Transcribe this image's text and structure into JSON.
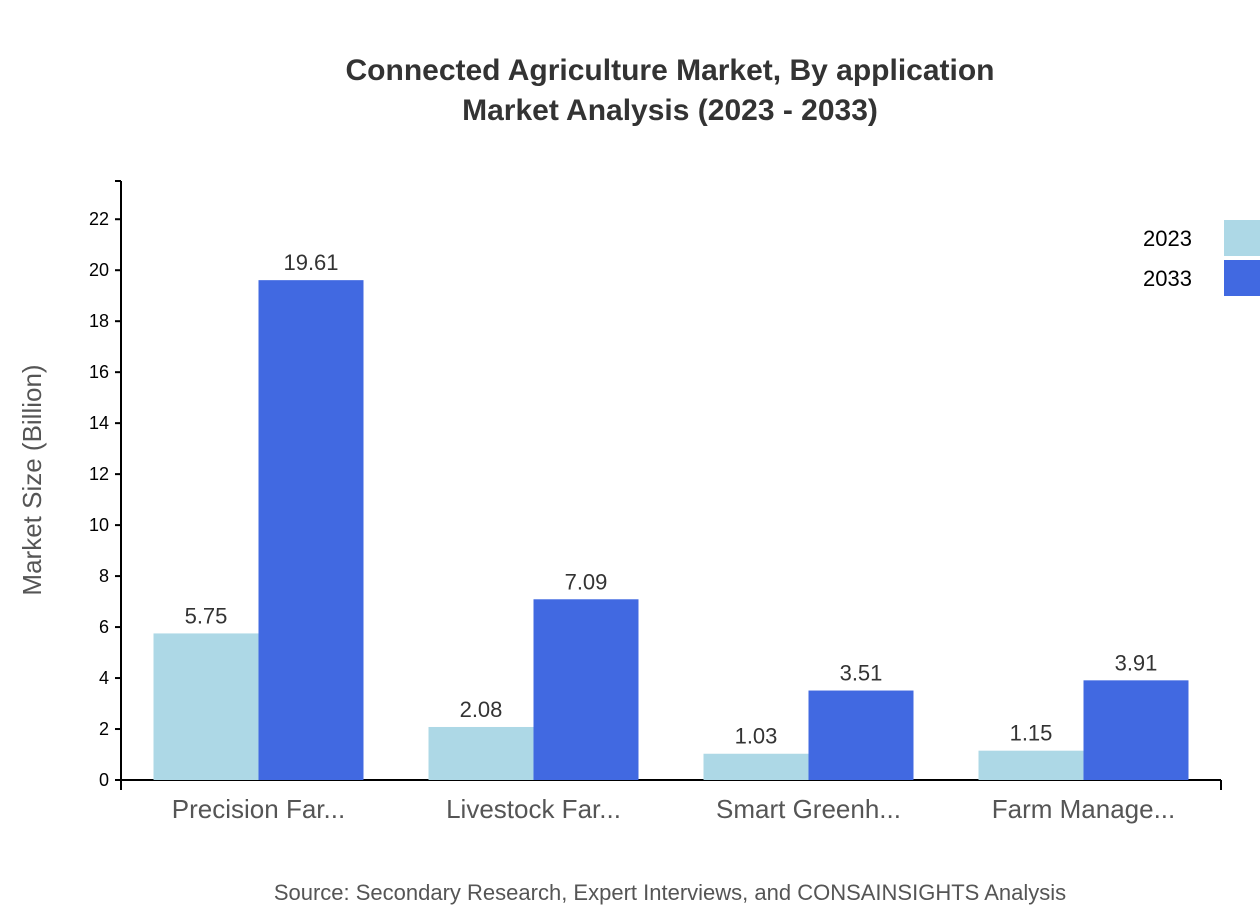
{
  "chart_data": {
    "type": "bar",
    "title": "Connected Agriculture Market, By application",
    "subtitle": "Market Analysis (2023 - 2033)",
    "xlabel": "",
    "ylabel": "Market Size (Billion)",
    "ylim": [
      0,
      23.5
    ],
    "yticks": [
      0,
      2,
      4,
      6,
      8,
      10,
      12,
      14,
      16,
      18,
      20,
      22
    ],
    "grid": false,
    "legend_position": "top-right",
    "categories": [
      "Precision Far...",
      "Livestock Far...",
      "Smart Greenh...",
      "Farm Manage..."
    ],
    "series": [
      {
        "name": "2023",
        "color": "#ADD8E6",
        "values": [
          5.75,
          2.08,
          1.03,
          1.15
        ]
      },
      {
        "name": "2033",
        "color": "#4169E1",
        "values": [
          19.61,
          7.09,
          3.51,
          3.91
        ]
      }
    ],
    "source": "Source: Secondary Research, Expert Interviews, and CONSAINSIGHTS Analysis"
  }
}
